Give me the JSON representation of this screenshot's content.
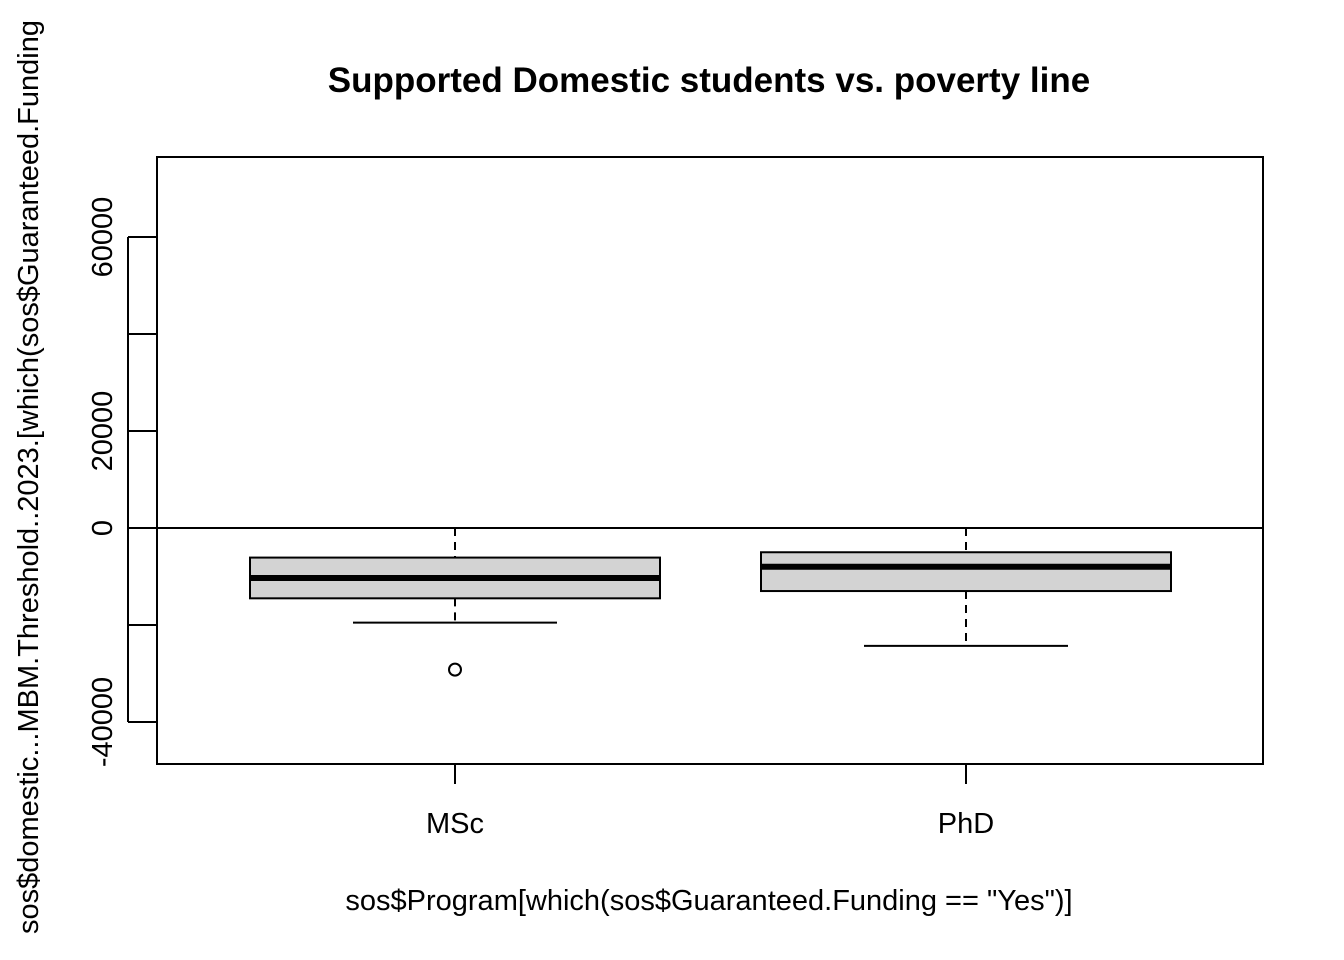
{
  "chart_data": {
    "type": "box",
    "title": "Supported Domestic students vs. poverty line",
    "xlabel": "sos$Program[which(sos$Guaranteed.Funding == \"Yes\")]",
    "ylabel": "sos$domestic...MBM.Threshold..2023.[which(sos$Guaranteed.Funding",
    "ylim": [
      -48500,
      77000
    ],
    "yticks": [
      -40000,
      -20000,
      0,
      20000,
      40000,
      60000
    ],
    "ytick_labels": [
      "-40000",
      "",
      "0",
      "20000",
      "",
      "60000"
    ],
    "reference_line": 0,
    "categories": [
      "MSc",
      "PhD"
    ],
    "box_fill": "#d3d3d3",
    "boxes": [
      {
        "name": "MSc",
        "whisker_low": -19500,
        "q1": -14500,
        "median": -10300,
        "q3": -6100,
        "whisker_high": 0,
        "outliers": [
          -29200
        ]
      },
      {
        "name": "PhD",
        "whisker_low": -24300,
        "q1": -13000,
        "median": -8000,
        "q3": -5000,
        "whisker_high": 0,
        "outliers": []
      }
    ]
  }
}
